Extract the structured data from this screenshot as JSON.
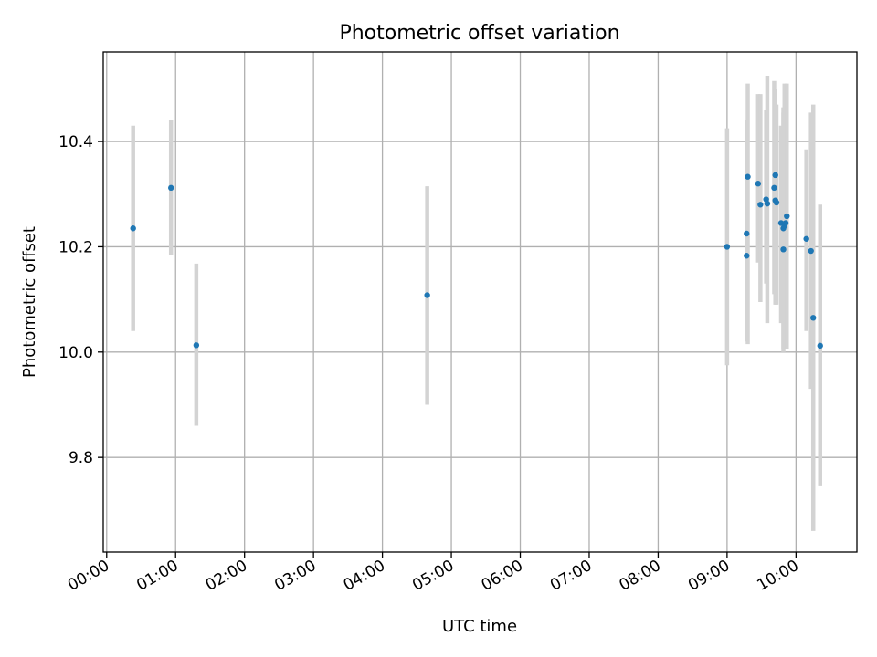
{
  "chart_data": {
    "type": "scatter",
    "title": "Photometric offset variation",
    "xlabel": "UTC time",
    "ylabel": "Photometric offset",
    "xlim": [
      "23:57",
      "10:53"
    ],
    "ylim": [
      9.62,
      10.57
    ],
    "grid": true,
    "x_ticks": [
      "00:00",
      "01:00",
      "02:00",
      "03:00",
      "04:00",
      "05:00",
      "06:00",
      "07:00",
      "08:00",
      "09:00",
      "10:00"
    ],
    "y_ticks": [
      "9.8",
      "10.0",
      "10.2",
      "10.4"
    ],
    "marker_color": "#1f77b4",
    "errorbar_color": "#d3d3d3",
    "points": [
      {
        "x": "00:23",
        "y": 10.235,
        "lo": 10.04,
        "hi": 10.43
      },
      {
        "x": "00:56",
        "y": 10.312,
        "lo": 10.185,
        "hi": 10.44
      },
      {
        "x": "01:18",
        "y": 10.013,
        "lo": 9.86,
        "hi": 10.168
      },
      {
        "x": "04:39",
        "y": 10.108,
        "lo": 9.9,
        "hi": 10.315
      },
      {
        "x": "09:00",
        "y": 10.2,
        "lo": 9.975,
        "hi": 10.425
      },
      {
        "x": "09:17",
        "y": 10.183,
        "lo": 10.02,
        "hi": 10.44
      },
      {
        "x": "09:17",
        "y": 10.225,
        "lo": 10.04,
        "hi": 10.4
      },
      {
        "x": "09:18",
        "y": 10.333,
        "lo": 10.015,
        "hi": 10.51
      },
      {
        "x": "09:27",
        "y": 10.32,
        "lo": 10.17,
        "hi": 10.49
      },
      {
        "x": "09:29",
        "y": 10.28,
        "lo": 10.095,
        "hi": 10.49
      },
      {
        "x": "09:34",
        "y": 10.29,
        "lo": 10.13,
        "hi": 10.46
      },
      {
        "x": "09:35",
        "y": 10.282,
        "lo": 10.055,
        "hi": 10.525
      },
      {
        "x": "09:41",
        "y": 10.312,
        "lo": 10.11,
        "hi": 10.515
      },
      {
        "x": "09:42",
        "y": 10.336,
        "lo": 10.18,
        "hi": 10.5
      },
      {
        "x": "09:42",
        "y": 10.288,
        "lo": 10.09,
        "hi": 10.48
      },
      {
        "x": "09:43",
        "y": 10.284,
        "lo": 10.09,
        "hi": 10.47
      },
      {
        "x": "09:47",
        "y": 10.245,
        "lo": 10.055,
        "hi": 10.43
      },
      {
        "x": "09:49",
        "y": 10.235,
        "lo": 10.0,
        "hi": 10.455
      },
      {
        "x": "09:49",
        "y": 10.195,
        "lo": 10.005,
        "hi": 10.465
      },
      {
        "x": "09:50",
        "y": 10.24,
        "lo": 10.03,
        "hi": 10.51
      },
      {
        "x": "09:51",
        "y": 10.245,
        "lo": 10.055,
        "hi": 10.45
      },
      {
        "x": "09:52",
        "y": 10.258,
        "lo": 10.005,
        "hi": 10.51
      },
      {
        "x": "10:09",
        "y": 10.215,
        "lo": 10.04,
        "hi": 10.385
      },
      {
        "x": "10:13",
        "y": 10.192,
        "lo": 9.93,
        "hi": 10.455
      },
      {
        "x": "10:15",
        "y": 10.065,
        "lo": 9.66,
        "hi": 10.47
      },
      {
        "x": "10:21",
        "y": 10.012,
        "lo": 9.745,
        "hi": 10.28
      }
    ]
  }
}
